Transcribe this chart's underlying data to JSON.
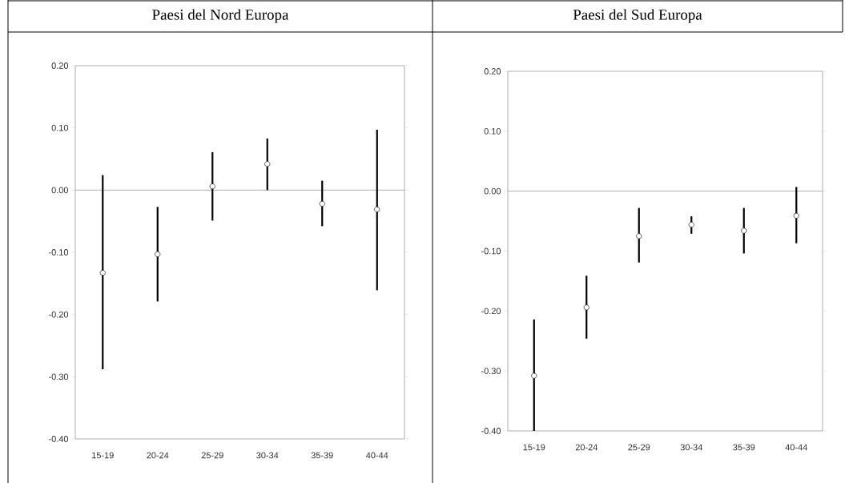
{
  "chart_data": [
    {
      "type": "scatter",
      "title": "Paesi del Nord Europa",
      "categories": [
        "15-19",
        "20-24",
        "25-29",
        "30-34",
        "35-39",
        "40-44"
      ],
      "marker": "circle",
      "values": [
        -0.133,
        -0.103,
        0.006,
        0.042,
        -0.022,
        -0.031
      ],
      "errors": [
        [
          -0.288,
          0.024
        ],
        [
          -0.179,
          -0.027
        ],
        [
          -0.049,
          0.061
        ],
        [
          0.0,
          0.083
        ],
        [
          -0.058,
          0.015
        ],
        [
          -0.161,
          0.097
        ]
      ],
      "ylim": [
        -0.4,
        0.2
      ],
      "yticks": [
        {
          "value": -0.4,
          "label": "-0.40"
        },
        {
          "value": -0.3,
          "label": "-0.30"
        },
        {
          "value": -0.2,
          "label": "-0.20"
        },
        {
          "value": -0.1,
          "label": "-0.10"
        },
        {
          "value": 0,
          "label": "0.00"
        },
        {
          "value": 0.1,
          "label": "0.10"
        },
        {
          "value": 0.2,
          "label": "0.20"
        }
      ],
      "ref_lines": [
        {
          "axis": "y",
          "value": 0,
          "color": "#b0b0b0"
        }
      ]
    },
    {
      "type": "scatter",
      "title": "Paesi del Sud Europa",
      "categories": [
        "15-19",
        "20-24",
        "25-29",
        "30-34",
        "35-39",
        "40-44"
      ],
      "marker": "circle",
      "values": [
        -0.308,
        -0.194,
        -0.075,
        -0.056,
        -0.066,
        -0.041
      ],
      "errors": [
        [
          -0.4,
          -0.214
        ],
        [
          -0.246,
          -0.141
        ],
        [
          -0.119,
          -0.028
        ],
        [
          -0.071,
          -0.042
        ],
        [
          -0.104,
          -0.028
        ],
        [
          -0.087,
          0.007
        ]
      ],
      "ylim": [
        -0.4,
        0.2
      ],
      "yticks": [
        {
          "value": -0.4,
          "label": "-0.40"
        },
        {
          "value": -0.3,
          "label": "-0.30"
        },
        {
          "value": -0.2,
          "label": "-0.20"
        },
        {
          "value": -0.1,
          "label": "-0.10"
        },
        {
          "value": 0,
          "label": "0.00"
        },
        {
          "value": 0.1,
          "label": "0.10"
        },
        {
          "value": 0.2,
          "label": "0.20"
        }
      ],
      "ref_lines": [
        {
          "axis": "y",
          "value": 0,
          "color": "#b0b0b0"
        }
      ]
    }
  ]
}
